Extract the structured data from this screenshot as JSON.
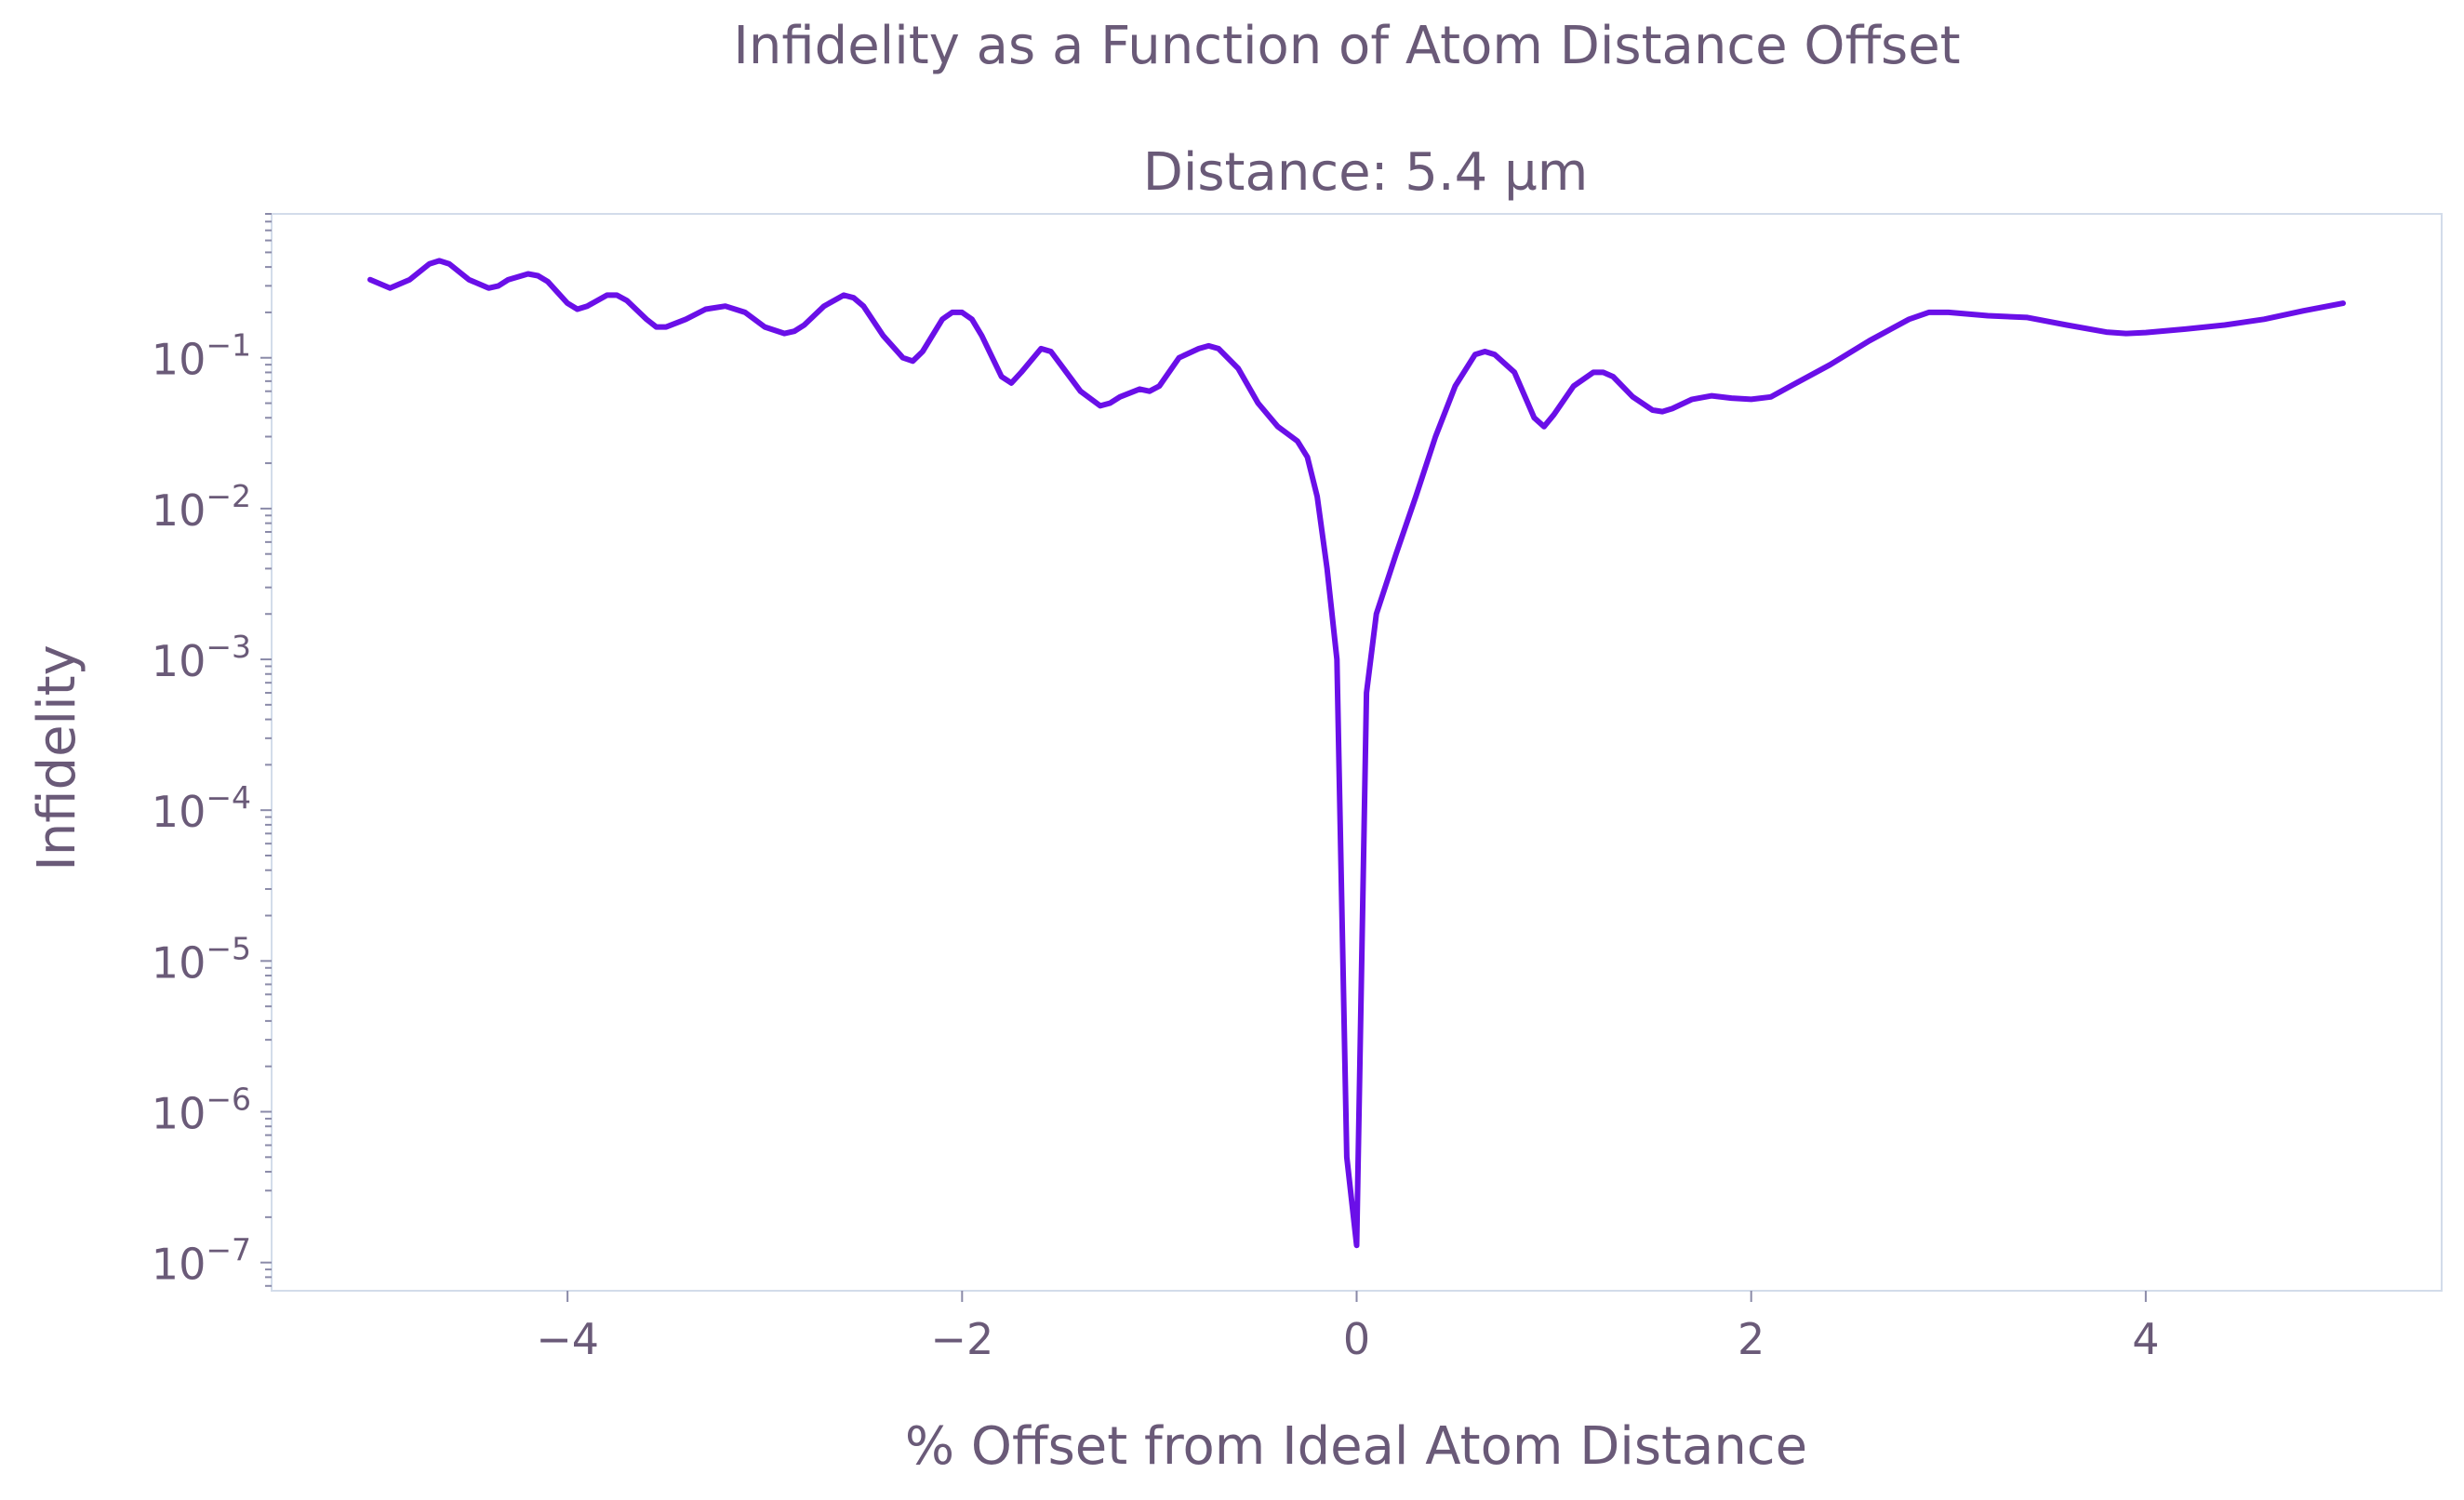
{
  "chart_data": {
    "type": "line",
    "title": "Infidelity as a Function of Atom Distance Offset",
    "subtitle": "Distance: 5.4 µm",
    "xlabel": "% Offset from Ideal Atom Distance",
    "ylabel": "Infidelity",
    "x_scale": "linear",
    "y_scale": "log",
    "xlim": [
      -5.5,
      5.5
    ],
    "ylim": [
      6.5e-08,
      0.9
    ],
    "x_ticks": [
      {
        "value": -4,
        "label": "−4"
      },
      {
        "value": -2,
        "label": "−2"
      },
      {
        "value": 0,
        "label": "0"
      },
      {
        "value": 2,
        "label": "2"
      },
      {
        "value": 4,
        "label": "4"
      }
    ],
    "y_ticks": [
      {
        "exp": -1,
        "base": "10",
        "sup": "−1"
      },
      {
        "exp": -2,
        "base": "10",
        "sup": "−2"
      },
      {
        "exp": -3,
        "base": "10",
        "sup": "−3"
      },
      {
        "exp": -4,
        "base": "10",
        "sup": "−4"
      },
      {
        "exp": -5,
        "base": "10",
        "sup": "−5"
      },
      {
        "exp": -6,
        "base": "10",
        "sup": "−6"
      },
      {
        "exp": -7,
        "base": "10",
        "sup": "−7"
      }
    ],
    "grid": false,
    "colors": {
      "line": "#6a0fe8",
      "axes": "#d3dcea",
      "text": "#6a5a78",
      "tick": "#8a8aa8"
    },
    "series": [
      {
        "x": [
          -5.0,
          -4.9,
          -4.8,
          -4.7,
          -4.65,
          -4.6,
          -4.5,
          -4.4,
          -4.35,
          -4.3,
          -4.2,
          -4.15,
          -4.1,
          -4.0,
          -3.95,
          -3.9,
          -3.8,
          -3.75,
          -3.7,
          -3.6,
          -3.55,
          -3.5,
          -3.4,
          -3.3,
          -3.2,
          -3.1,
          -3.0,
          -2.9,
          -2.85,
          -2.8,
          -2.7,
          -2.6,
          -2.55,
          -2.5,
          -2.4,
          -2.3,
          -2.25,
          -2.2,
          -2.1,
          -2.05,
          -2.0,
          -1.95,
          -1.9,
          -1.8,
          -1.75,
          -1.7,
          -1.6,
          -1.55,
          -1.5,
          -1.4,
          -1.3,
          -1.25,
          -1.2,
          -1.1,
          -1.05,
          -1.0,
          -0.9,
          -0.8,
          -0.75,
          -0.7,
          -0.6,
          -0.5,
          -0.4,
          -0.3,
          -0.25,
          -0.2,
          -0.15,
          -0.1,
          -0.05,
          0.0,
          0.05,
          0.1,
          0.2,
          0.3,
          0.4,
          0.5,
          0.6,
          0.65,
          0.7,
          0.8,
          0.9,
          0.95,
          1.0,
          1.1,
          1.2,
          1.25,
          1.3,
          1.4,
          1.5,
          1.55,
          1.6,
          1.7,
          1.8,
          1.9,
          2.0,
          2.1,
          2.2,
          2.4,
          2.6,
          2.8,
          2.9,
          3.0,
          3.2,
          3.4,
          3.6,
          3.8,
          3.9,
          4.0,
          4.2,
          4.4,
          4.6,
          4.8,
          5.0
        ],
        "y": [
          0.33,
          0.29,
          0.33,
          0.42,
          0.44,
          0.42,
          0.33,
          0.29,
          0.3,
          0.33,
          0.36,
          0.35,
          0.32,
          0.23,
          0.21,
          0.22,
          0.26,
          0.26,
          0.24,
          0.18,
          0.16,
          0.16,
          0.18,
          0.21,
          0.22,
          0.2,
          0.16,
          0.145,
          0.15,
          0.165,
          0.22,
          0.26,
          0.25,
          0.22,
          0.14,
          0.1,
          0.095,
          0.11,
          0.18,
          0.2,
          0.2,
          0.18,
          0.14,
          0.075,
          0.068,
          0.08,
          0.115,
          0.11,
          0.09,
          0.06,
          0.048,
          0.05,
          0.055,
          0.062,
          0.06,
          0.065,
          0.1,
          0.115,
          0.12,
          0.115,
          0.085,
          0.05,
          0.035,
          0.028,
          0.022,
          0.012,
          0.004,
          0.001,
          5e-07,
          1.3e-07,
          0.0006,
          0.002,
          0.005,
          0.012,
          0.03,
          0.065,
          0.105,
          0.11,
          0.105,
          0.08,
          0.04,
          0.035,
          0.042,
          0.065,
          0.08,
          0.08,
          0.075,
          0.055,
          0.045,
          0.044,
          0.046,
          0.053,
          0.056,
          0.054,
          0.053,
          0.055,
          0.065,
          0.09,
          0.13,
          0.18,
          0.2,
          0.2,
          0.19,
          0.185,
          0.165,
          0.148,
          0.145,
          0.147,
          0.155,
          0.165,
          0.18,
          0.205,
          0.23
        ]
      }
    ]
  }
}
